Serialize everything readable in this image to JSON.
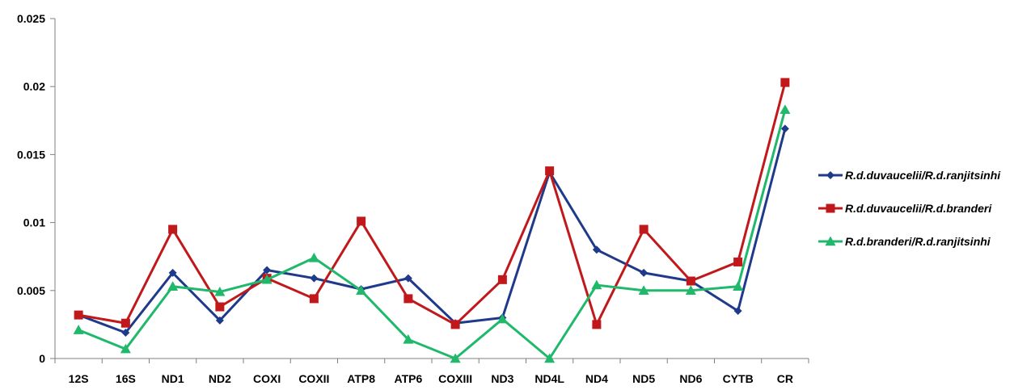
{
  "chart_data": {
    "type": "line",
    "categories": [
      "12S",
      "16S",
      "ND1",
      "ND2",
      "COXI",
      "COXII",
      "ATP8",
      "ATP6",
      "COXIII",
      "ND3",
      "ND4L",
      "ND4",
      "ND5",
      "ND6",
      "CYTB",
      "CR"
    ],
    "ylim": [
      0,
      0.025
    ],
    "yticks": [
      "0",
      "0.005",
      "0.01",
      "0.015",
      "0.02",
      "0.025"
    ],
    "ytick_values": [
      0,
      0.005,
      0.01,
      0.015,
      0.02,
      0.025
    ],
    "grid": false,
    "legend_position": "right",
    "series": [
      {
        "name": "R.d.duvaucelii/R.d.ranjitsinhi",
        "color": "#1f3a8a",
        "marker": "diamond",
        "values": [
          0.0032,
          0.0019,
          0.0063,
          0.0028,
          0.0065,
          0.0059,
          0.0051,
          0.0059,
          0.0026,
          0.003,
          0.0137,
          0.008,
          0.0063,
          0.0057,
          0.0035,
          0.0169
        ]
      },
      {
        "name": "R.d.duvaucelii/R.d.branderi",
        "color": "#c0181b",
        "marker": "square",
        "values": [
          0.0032,
          0.0026,
          0.0095,
          0.0038,
          0.0059,
          0.0044,
          0.0101,
          0.0044,
          0.0025,
          0.0058,
          0.0138,
          0.0025,
          0.0095,
          0.0057,
          0.0071,
          0.0203
        ]
      },
      {
        "name": "R.d.branderi/R.d.ranjitsinhi",
        "color": "#20b86a",
        "marker": "triangle",
        "values": [
          0.0021,
          0.0007,
          0.0053,
          0.0049,
          0.0058,
          0.0074,
          0.005,
          0.0014,
          0.0,
          0.0029,
          0.0,
          0.0054,
          0.005,
          0.005,
          0.0053,
          0.0183
        ]
      }
    ]
  }
}
